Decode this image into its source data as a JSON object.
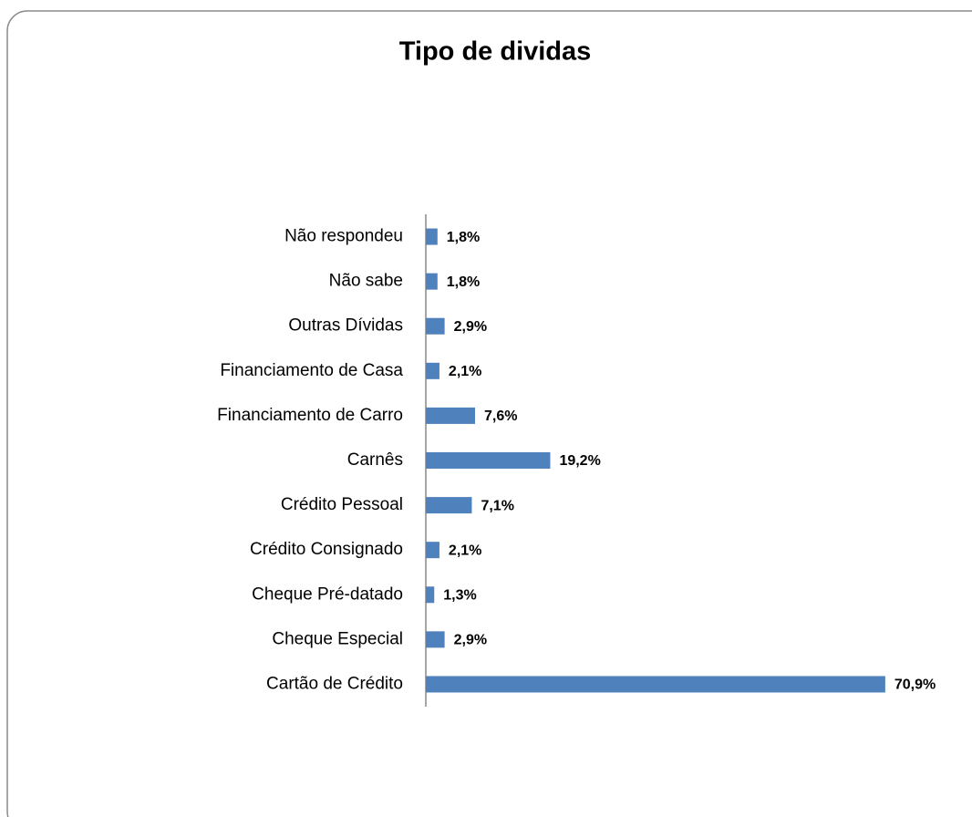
{
  "chart_data": {
    "type": "bar",
    "orientation": "horizontal",
    "title": "Tipo de dividas",
    "categories": [
      "Não respondeu",
      "Não sabe",
      "Outras Dívidas",
      "Financiamento de Casa",
      "Financiamento de Carro",
      "Carnês",
      "Crédito Pessoal",
      "Crédito Consignado",
      "Cheque Pré-datado",
      "Cheque Especial",
      "Cartão de Crédito"
    ],
    "values": [
      1.8,
      1.8,
      2.9,
      2.1,
      7.6,
      19.2,
      7.1,
      2.1,
      1.3,
      2.9,
      70.9
    ],
    "value_labels": [
      "1,8%",
      "1,8%",
      "2,9%",
      "2,1%",
      "7,6%",
      "19,2%",
      "7,1%",
      "2,1%",
      "1,3%",
      "2,9%",
      "70,9%"
    ],
    "color": "#4f81bd",
    "xlim": [
      0,
      75
    ],
    "grid": false
  }
}
